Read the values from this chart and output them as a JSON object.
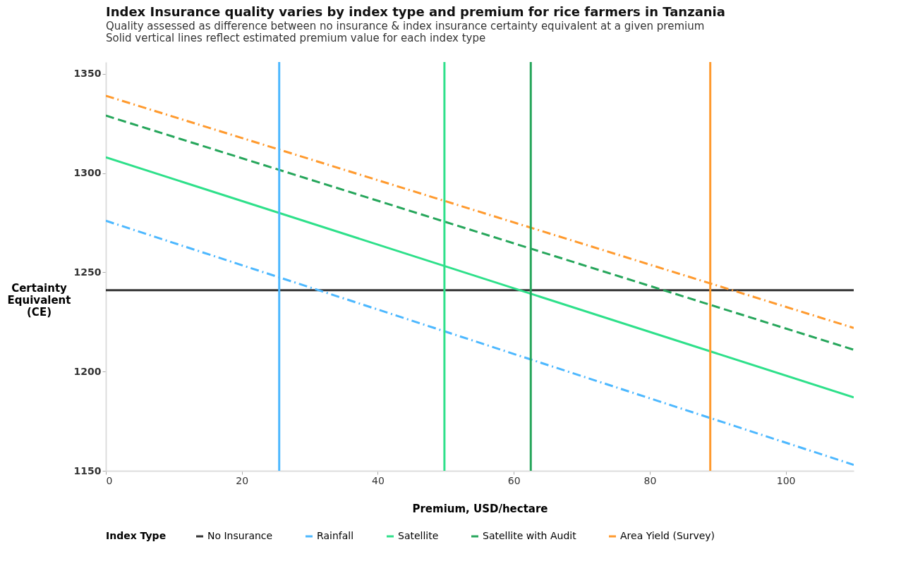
{
  "chart_data": {
    "type": "line",
    "title": "Index Insurance quality varies by index type and premium for rice farmers in Tanzania",
    "subtitle": "Quality assessed as difference between no insurance & index insurance certainty equivalent at a given premium\nSolid vertical lines reflect estimated premium value for each index type",
    "xlabel": "Premium, USD/hectare",
    "ylabel": "Certainty Equivalent (CE)",
    "legend_title": "Index Type",
    "x": [
      0,
      110
    ],
    "series": [
      {
        "name": "No Insurance",
        "color": "#333333",
        "values": [
          1241,
          1241
        ],
        "line_style": "solid"
      },
      {
        "name": "Rainfall",
        "color": "#4db8ff",
        "values": [
          1276,
          1153
        ],
        "line_style": "dashdot"
      },
      {
        "name": "Satellite",
        "color": "#2ee08a",
        "values": [
          1308,
          1187
        ],
        "line_style": "solid"
      },
      {
        "name": "Satellite with Audit",
        "color": "#26a65b",
        "values": [
          1329,
          1211
        ],
        "line_style": "dashed"
      },
      {
        "name": "Area Yield (Survey)",
        "color": "#ff9a2e",
        "values": [
          1339,
          1222
        ],
        "line_style": "dashdot"
      }
    ],
    "ref_lines": [
      {
        "axis": "x",
        "value": 25.5,
        "color": "#4db8ff",
        "line_style": "solid"
      },
      {
        "axis": "x",
        "value": 49.8,
        "color": "#2ee08a",
        "line_style": "solid"
      },
      {
        "axis": "x",
        "value": 62.5,
        "color": "#26a65b",
        "line_style": "solid"
      },
      {
        "axis": "x",
        "value": 88.9,
        "color": "#ff9a2e",
        "line_style": "solid"
      }
    ],
    "xlim": [
      0,
      110
    ],
    "ylim": [
      1150,
      1356
    ],
    "xticks": [
      0,
      20,
      40,
      60,
      80,
      100
    ],
    "yticks": [
      1150,
      1200,
      1250,
      1300,
      1350
    ],
    "grid": false,
    "legend": "bottom",
    "marker": "none"
  }
}
